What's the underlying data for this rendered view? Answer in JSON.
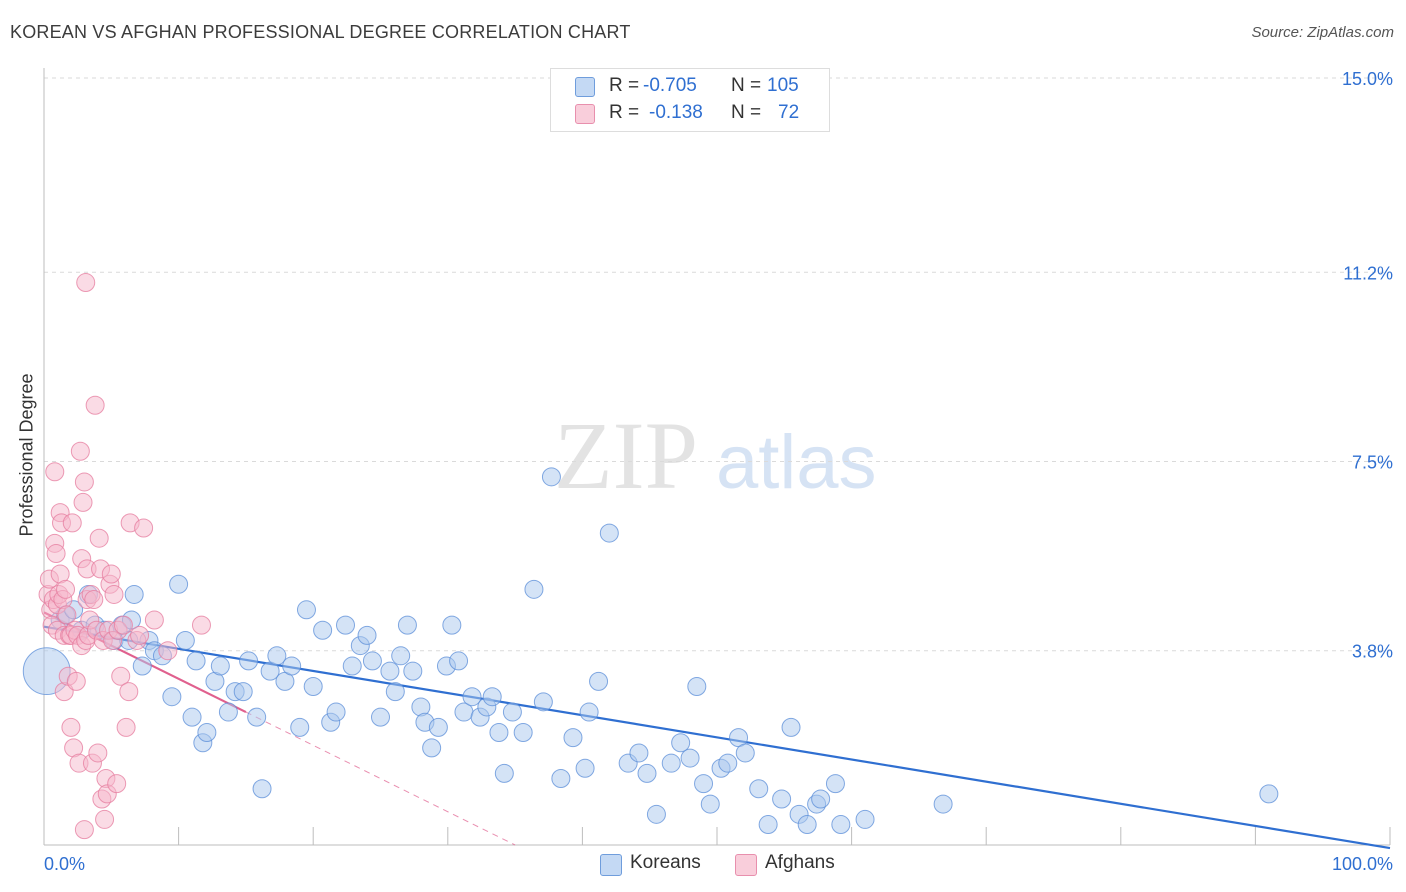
{
  "title": "KOREAN VS AFGHAN PROFESSIONAL DEGREE CORRELATION CHART",
  "source": "Source: ZipAtlas.com",
  "watermark": {
    "zip": "ZIP",
    "atlas": "atlas"
  },
  "colors": {
    "korean_fill": "#a9c7ee",
    "korean_stroke": "#5b8ed8",
    "korean_line": "#2f6fd1",
    "afghan_fill": "#f6b8cb",
    "afghan_stroke": "#e57b9e",
    "afghan_line": "#e0608e",
    "tick_label": "#2f6fd1",
    "grid": "#dadada"
  },
  "legend": {
    "r_label": "R =",
    "n_label": "N =",
    "korean": {
      "r": "-0.705",
      "n": "105"
    },
    "afghan": {
      "r": "-0.138",
      "n": "72"
    }
  },
  "bottom_legend": {
    "korean": "Koreans",
    "afghan": "Afghans"
  },
  "chart_data": {
    "type": "scatter",
    "title": "KOREAN VS AFGHAN PROFESSIONAL DEGREE CORRELATION CHART",
    "xlabel": "",
    "ylabel": "Professional Degree",
    "xlim": [
      0,
      100
    ],
    "ylim": [
      0,
      15
    ],
    "x_tick_labels": [
      "0.0%",
      "100.0%"
    ],
    "y_ticks": [
      3.8,
      7.5,
      11.2,
      15.0
    ],
    "y_tick_labels": [
      "3.8%",
      "7.5%",
      "11.2%",
      "15.0%"
    ],
    "grid": true,
    "series": [
      {
        "name": "Koreans",
        "points": [
          [
            0.2,
            3.4,
            2.6
          ],
          [
            1.2,
            4.4,
            1
          ],
          [
            1.6,
            4.5,
            1
          ],
          [
            2.2,
            4.6,
            1
          ],
          [
            2.8,
            4.2,
            1
          ],
          [
            3.3,
            4.9,
            1
          ],
          [
            3.8,
            4.3,
            1
          ],
          [
            4.5,
            4.2,
            1
          ],
          [
            5.2,
            4.0,
            1
          ],
          [
            5.8,
            4.3,
            1
          ],
          [
            6.3,
            4.0,
            1
          ],
          [
            6.5,
            4.4,
            1
          ],
          [
            6.7,
            4.9,
            1
          ],
          [
            7.3,
            3.5,
            1
          ],
          [
            7.8,
            4.0,
            1
          ],
          [
            8.2,
            3.8,
            1
          ],
          [
            8.8,
            3.7,
            1
          ],
          [
            9.5,
            2.9,
            1
          ],
          [
            10.0,
            5.1,
            1
          ],
          [
            10.5,
            4.0,
            1
          ],
          [
            11.0,
            2.5,
            1
          ],
          [
            11.3,
            3.6,
            1
          ],
          [
            11.8,
            2.0,
            1
          ],
          [
            12.1,
            2.2,
            1
          ],
          [
            12.7,
            3.2,
            1
          ],
          [
            13.1,
            3.5,
            1
          ],
          [
            13.7,
            2.6,
            1
          ],
          [
            14.2,
            3.0,
            1
          ],
          [
            14.8,
            3.0,
            1
          ],
          [
            15.2,
            3.6,
            1
          ],
          [
            15.8,
            2.5,
            1
          ],
          [
            16.2,
            1.1,
            1
          ],
          [
            16.8,
            3.4,
            1
          ],
          [
            17.3,
            3.7,
            1
          ],
          [
            17.9,
            3.2,
            1
          ],
          [
            18.4,
            3.5,
            1
          ],
          [
            19.0,
            2.3,
            1
          ],
          [
            19.5,
            4.6,
            1
          ],
          [
            20.0,
            3.1,
            1
          ],
          [
            20.7,
            4.2,
            1
          ],
          [
            21.3,
            2.4,
            1
          ],
          [
            21.7,
            2.6,
            1
          ],
          [
            22.4,
            4.3,
            1
          ],
          [
            22.9,
            3.5,
            1
          ],
          [
            23.5,
            3.9,
            1
          ],
          [
            24.0,
            4.1,
            1
          ],
          [
            24.4,
            3.6,
            1
          ],
          [
            25.0,
            2.5,
            1
          ],
          [
            25.7,
            3.4,
            1
          ],
          [
            26.1,
            3.0,
            1
          ],
          [
            26.5,
            3.7,
            1
          ],
          [
            27.0,
            4.3,
            1
          ],
          [
            27.4,
            3.4,
            1
          ],
          [
            28.0,
            2.7,
            1
          ],
          [
            28.3,
            2.4,
            1
          ],
          [
            28.8,
            1.9,
            1
          ],
          [
            29.3,
            2.3,
            1
          ],
          [
            29.9,
            3.5,
            1
          ],
          [
            30.3,
            4.3,
            1
          ],
          [
            30.8,
            3.6,
            1
          ],
          [
            31.2,
            2.6,
            1
          ],
          [
            31.8,
            2.9,
            1
          ],
          [
            32.4,
            2.5,
            1
          ],
          [
            32.9,
            2.7,
            1
          ],
          [
            33.3,
            2.9,
            1
          ],
          [
            33.8,
            2.2,
            1
          ],
          [
            34.2,
            1.4,
            1
          ],
          [
            34.8,
            2.6,
            1
          ],
          [
            35.6,
            2.2,
            1
          ],
          [
            36.4,
            5.0,
            1
          ],
          [
            37.1,
            2.8,
            1
          ],
          [
            37.7,
            7.2,
            1
          ],
          [
            38.4,
            1.3,
            1
          ],
          [
            39.3,
            2.1,
            1
          ],
          [
            40.2,
            1.5,
            1
          ],
          [
            40.5,
            2.6,
            1
          ],
          [
            41.2,
            3.2,
            1
          ],
          [
            42.0,
            6.1,
            1
          ],
          [
            43.4,
            1.6,
            1
          ],
          [
            44.2,
            1.8,
            1
          ],
          [
            44.8,
            1.4,
            1
          ],
          [
            45.5,
            0.6,
            1
          ],
          [
            46.6,
            1.6,
            1
          ],
          [
            47.3,
            2.0,
            1
          ],
          [
            48.0,
            1.7,
            1
          ],
          [
            48.5,
            3.1,
            1
          ],
          [
            49.0,
            1.2,
            1
          ],
          [
            49.5,
            0.8,
            1
          ],
          [
            50.3,
            1.5,
            1
          ],
          [
            50.8,
            1.6,
            1
          ],
          [
            51.6,
            2.1,
            1
          ],
          [
            52.1,
            1.8,
            1
          ],
          [
            53.1,
            1.1,
            1
          ],
          [
            53.8,
            0.4,
            1
          ],
          [
            54.8,
            0.9,
            1
          ],
          [
            55.5,
            2.3,
            1
          ],
          [
            56.1,
            0.6,
            1
          ],
          [
            56.7,
            0.4,
            1
          ],
          [
            57.4,
            0.8,
            1
          ],
          [
            57.7,
            0.9,
            1
          ],
          [
            58.8,
            1.2,
            1
          ],
          [
            59.2,
            0.4,
            1
          ],
          [
            61.0,
            0.5,
            1
          ],
          [
            66.8,
            0.8,
            1
          ],
          [
            91.0,
            1.0,
            1
          ]
        ]
      },
      {
        "name": "Afghans",
        "points": [
          [
            0.3,
            4.9,
            1
          ],
          [
            0.4,
            5.2,
            1
          ],
          [
            0.5,
            4.6,
            1
          ],
          [
            0.6,
            4.3,
            1
          ],
          [
            0.7,
            4.8,
            1
          ],
          [
            0.8,
            7.3,
            1
          ],
          [
            0.8,
            5.9,
            1
          ],
          [
            0.9,
            5.7,
            1
          ],
          [
            1.0,
            4.7,
            1
          ],
          [
            1.0,
            4.2,
            1
          ],
          [
            1.1,
            4.9,
            1
          ],
          [
            1.2,
            5.3,
            1
          ],
          [
            1.2,
            6.5,
            1
          ],
          [
            1.3,
            6.3,
            1
          ],
          [
            1.4,
            4.8,
            1
          ],
          [
            1.5,
            3.0,
            1
          ],
          [
            1.5,
            4.1,
            1
          ],
          [
            1.6,
            5.0,
            1
          ],
          [
            1.7,
            4.5,
            1
          ],
          [
            1.8,
            3.3,
            1
          ],
          [
            1.9,
            4.1,
            1
          ],
          [
            2.0,
            2.3,
            1
          ],
          [
            2.0,
            4.1,
            1
          ],
          [
            2.1,
            6.3,
            1
          ],
          [
            2.2,
            1.9,
            1
          ],
          [
            2.3,
            4.2,
            1
          ],
          [
            2.4,
            3.2,
            1
          ],
          [
            2.5,
            4.1,
            1
          ],
          [
            2.6,
            1.6,
            1
          ],
          [
            2.7,
            7.7,
            1
          ],
          [
            2.8,
            5.6,
            1
          ],
          [
            2.8,
            3.9,
            1
          ],
          [
            2.9,
            6.7,
            1
          ],
          [
            3.0,
            7.1,
            1
          ],
          [
            3.0,
            0.3,
            1
          ],
          [
            3.1,
            4.0,
            1
          ],
          [
            3.2,
            4.8,
            1
          ],
          [
            3.2,
            5.4,
            1
          ],
          [
            3.3,
            4.1,
            1
          ],
          [
            3.4,
            4.4,
            1
          ],
          [
            3.5,
            4.9,
            1
          ],
          [
            3.6,
            1.6,
            1
          ],
          [
            3.7,
            4.8,
            1
          ],
          [
            3.8,
            8.6,
            1
          ],
          [
            3.9,
            4.2,
            1
          ],
          [
            4.0,
            1.8,
            1
          ],
          [
            4.1,
            6.0,
            1
          ],
          [
            4.2,
            5.4,
            1
          ],
          [
            4.3,
            0.9,
            1
          ],
          [
            4.4,
            4.0,
            1
          ],
          [
            4.5,
            0.5,
            1
          ],
          [
            4.6,
            1.3,
            1
          ],
          [
            4.7,
            1.0,
            1
          ],
          [
            4.8,
            4.2,
            1
          ],
          [
            4.9,
            5.1,
            1
          ],
          [
            5.0,
            5.3,
            1
          ],
          [
            5.1,
            4.0,
            1
          ],
          [
            5.2,
            4.9,
            1
          ],
          [
            5.4,
            1.2,
            1
          ],
          [
            5.5,
            4.2,
            1
          ],
          [
            5.7,
            3.3,
            1
          ],
          [
            5.9,
            4.3,
            1
          ],
          [
            6.1,
            2.3,
            1
          ],
          [
            6.3,
            3.0,
            1
          ],
          [
            6.4,
            6.3,
            1
          ],
          [
            6.9,
            4.0,
            1
          ],
          [
            7.1,
            4.1,
            1
          ],
          [
            7.4,
            6.2,
            1
          ],
          [
            8.2,
            4.4,
            1
          ],
          [
            9.2,
            3.8,
            1
          ],
          [
            11.7,
            4.3,
            1
          ],
          [
            3.1,
            11.0,
            1
          ]
        ]
      }
    ],
    "trendlines": [
      {
        "series": "Koreans",
        "from": [
          0,
          4.27
        ],
        "to": [
          100,
          -0.06
        ],
        "style": "solid"
      },
      {
        "series": "Afghans",
        "from": [
          0,
          4.55
        ],
        "to": [
          15,
          2.6
        ],
        "style": "solid"
      },
      {
        "series": "Afghans",
        "from": [
          15,
          2.6
        ],
        "to": [
          35,
          0.0
        ],
        "style": "dashed"
      }
    ]
  }
}
